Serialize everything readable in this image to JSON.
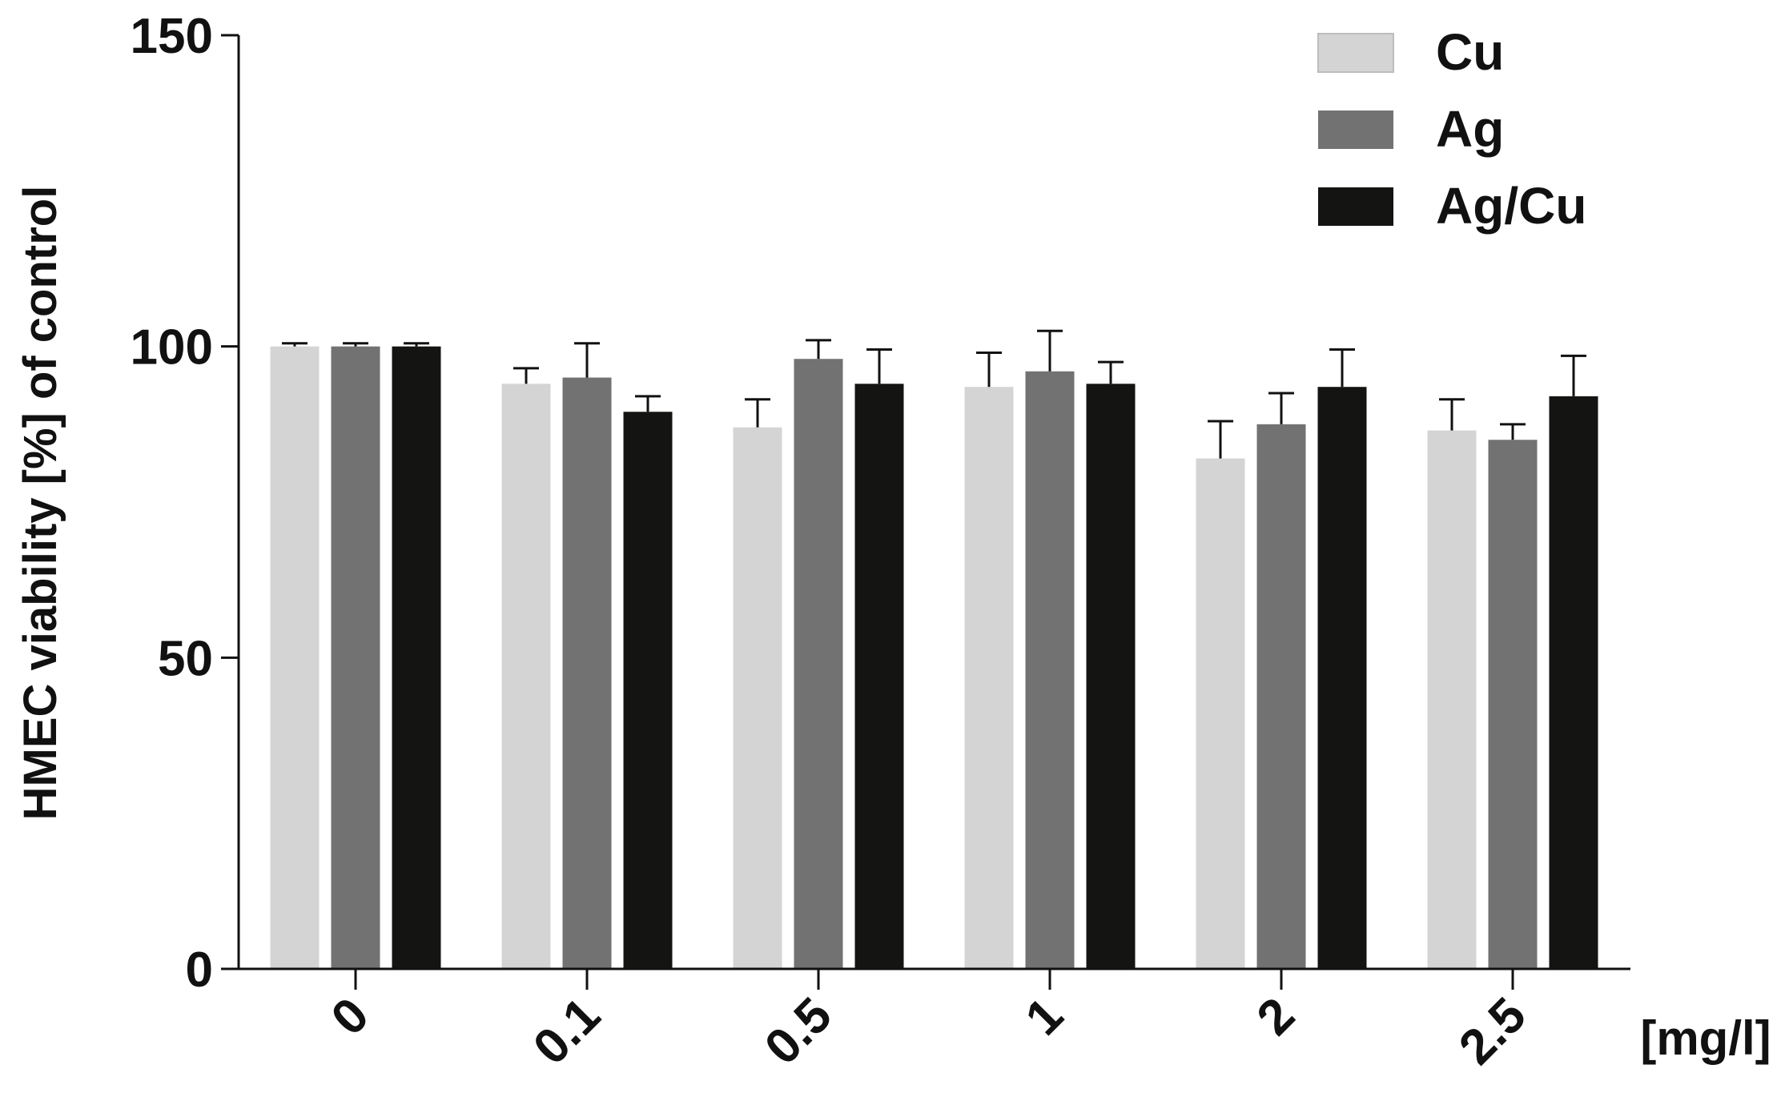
{
  "chart_data": {
    "type": "bar",
    "ylabel": "HMEC viability  [%] of control",
    "x_unit_label": "[mg/l]",
    "categories": [
      "0",
      "0.1",
      "0.5",
      "1",
      "2",
      "2.5"
    ],
    "ylim": [
      0,
      150
    ],
    "yticks": [
      "0",
      "50",
      "100",
      "150"
    ],
    "grid": false,
    "legend_position": "top-right",
    "series": [
      {
        "name": "Cu",
        "color": "#d4d4d4",
        "values": [
          100,
          94,
          87,
          93.5,
          82,
          86.5
        ],
        "errors": [
          0.5,
          2.5,
          4.5,
          5.5,
          6,
          5
        ]
      },
      {
        "name": "Ag",
        "color": "#717271",
        "values": [
          100,
          95,
          98,
          96,
          87.5,
          85
        ],
        "errors": [
          0.5,
          5.5,
          3,
          6.5,
          5,
          2.5
        ]
      },
      {
        "name": "Ag/Cu",
        "color": "#141412",
        "values": [
          100,
          89.5,
          94,
          94,
          93.5,
          92
        ],
        "errors": [
          0.5,
          2.5,
          5.5,
          3.5,
          6,
          6.5
        ]
      }
    ]
  }
}
